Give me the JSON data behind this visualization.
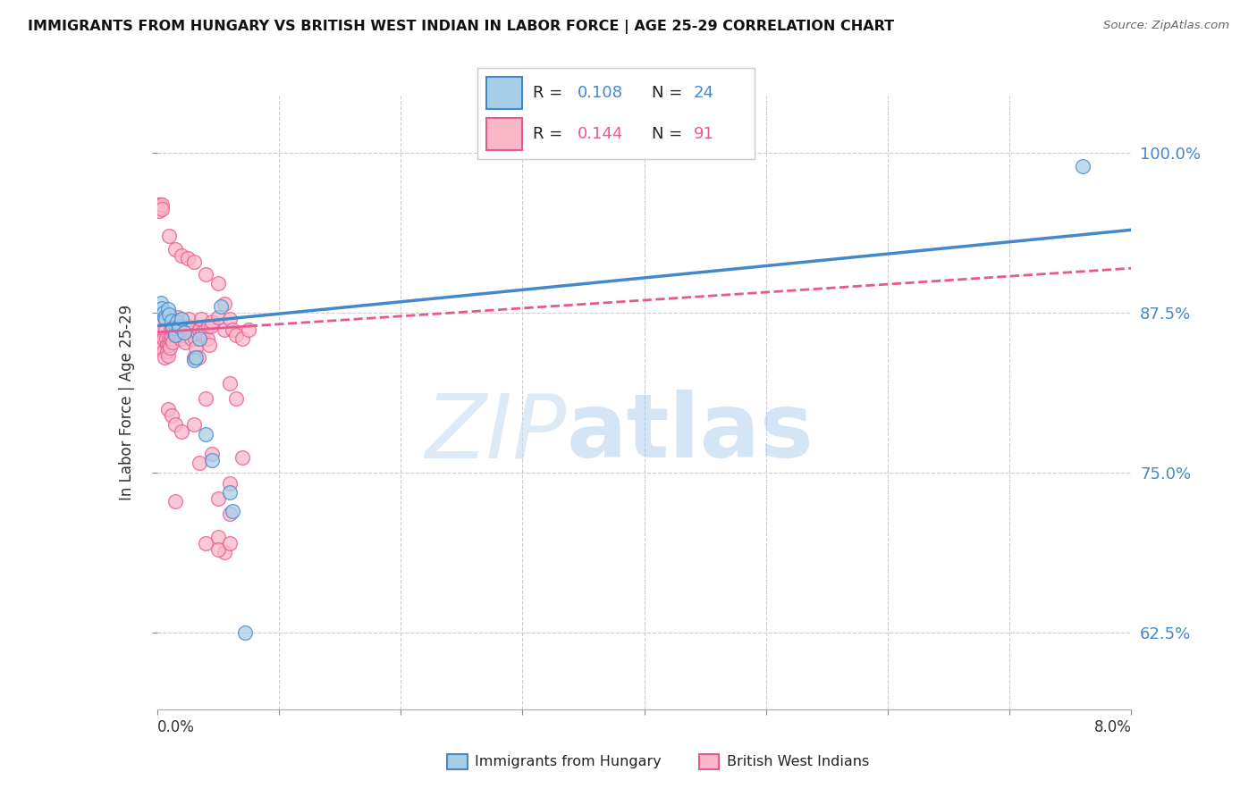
{
  "title": "IMMIGRANTS FROM HUNGARY VS BRITISH WEST INDIAN IN LABOR FORCE | AGE 25-29 CORRELATION CHART",
  "source": "Source: ZipAtlas.com",
  "ylabel": "In Labor Force | Age 25-29",
  "ytick_labels": [
    "62.5%",
    "75.0%",
    "87.5%",
    "100.0%"
  ],
  "ytick_values": [
    0.625,
    0.75,
    0.875,
    1.0
  ],
  "xlim": [
    0.0,
    0.08
  ],
  "ylim": [
    0.565,
    1.045
  ],
  "blue_color": "#a8cfe8",
  "pink_color": "#f9b8c8",
  "line_blue": "#4488cc",
  "line_pink": "#e85890",
  "hungary_points": [
    [
      0.0003,
      0.883
    ],
    [
      0.0004,
      0.879
    ],
    [
      0.0005,
      0.875
    ],
    [
      0.0006,
      0.872
    ],
    [
      0.0007,
      0.87
    ],
    [
      0.0009,
      0.878
    ],
    [
      0.001,
      0.874
    ],
    [
      0.0012,
      0.869
    ],
    [
      0.0013,
      0.863
    ],
    [
      0.0015,
      0.858
    ],
    [
      0.0016,
      0.868
    ],
    [
      0.0018,
      0.865
    ],
    [
      0.002,
      0.87
    ],
    [
      0.0022,
      0.86
    ],
    [
      0.003,
      0.838
    ],
    [
      0.0032,
      0.84
    ],
    [
      0.0035,
      0.855
    ],
    [
      0.004,
      0.78
    ],
    [
      0.0045,
      0.76
    ],
    [
      0.0052,
      0.88
    ],
    [
      0.006,
      0.735
    ],
    [
      0.0062,
      0.72
    ],
    [
      0.0072,
      0.625
    ],
    [
      0.076,
      0.99
    ]
  ],
  "bwi_points": [
    [
      0.0001,
      0.865
    ],
    [
      0.0002,
      0.858
    ],
    [
      0.00025,
      0.855
    ],
    [
      0.0003,
      0.852
    ],
    [
      0.00035,
      0.848
    ],
    [
      0.0004,
      0.86
    ],
    [
      0.00045,
      0.862
    ],
    [
      0.0005,
      0.855
    ],
    [
      0.00055,
      0.845
    ],
    [
      0.0006,
      0.84
    ],
    [
      0.00065,
      0.87
    ],
    [
      0.0007,
      0.862
    ],
    [
      0.00075,
      0.855
    ],
    [
      0.0008,
      0.85
    ],
    [
      0.00085,
      0.845
    ],
    [
      0.0009,
      0.842
    ],
    [
      0.00095,
      0.855
    ],
    [
      0.001,
      0.85
    ],
    [
      0.00105,
      0.848
    ],
    [
      0.0011,
      0.855
    ],
    [
      0.00115,
      0.862
    ],
    [
      0.0012,
      0.858
    ],
    [
      0.00125,
      0.852
    ],
    [
      0.0013,
      0.862
    ],
    [
      0.00135,
      0.86
    ],
    [
      0.0014,
      0.868
    ],
    [
      0.00145,
      0.87
    ],
    [
      0.0015,
      0.86
    ],
    [
      0.00155,
      0.858
    ],
    [
      0.0016,
      0.862
    ],
    [
      0.00165,
      0.868
    ],
    [
      0.0017,
      0.872
    ],
    [
      0.00175,
      0.858
    ],
    [
      0.0018,
      0.862
    ],
    [
      0.00185,
      0.865
    ],
    [
      0.0019,
      0.855
    ],
    [
      0.002,
      0.858
    ],
    [
      0.0021,
      0.862
    ],
    [
      0.0022,
      0.858
    ],
    [
      0.0023,
      0.852
    ],
    [
      0.0024,
      0.862
    ],
    [
      0.0025,
      0.865
    ],
    [
      0.0026,
      0.87
    ],
    [
      0.0027,
      0.862
    ],
    [
      0.0028,
      0.855
    ],
    [
      0.003,
      0.84
    ],
    [
      0.0031,
      0.855
    ],
    [
      0.0032,
      0.848
    ],
    [
      0.0033,
      0.86
    ],
    [
      0.0034,
      0.84
    ],
    [
      0.0035,
      0.862
    ],
    [
      0.0036,
      0.87
    ],
    [
      0.0037,
      0.86
    ],
    [
      0.004,
      0.862
    ],
    [
      0.0041,
      0.855
    ],
    [
      0.0042,
      0.865
    ],
    [
      0.0043,
      0.85
    ],
    [
      0.0044,
      0.865
    ],
    [
      0.0045,
      0.868
    ],
    [
      0.005,
      0.872
    ],
    [
      0.0055,
      0.862
    ],
    [
      0.006,
      0.87
    ],
    [
      0.0062,
      0.862
    ],
    [
      0.0065,
      0.858
    ],
    [
      0.007,
      0.855
    ],
    [
      0.0075,
      0.862
    ],
    [
      0.00015,
      0.955
    ],
    [
      0.0002,
      0.96
    ],
    [
      0.00025,
      0.96
    ],
    [
      0.0003,
      0.958
    ],
    [
      0.00035,
      0.96
    ],
    [
      0.0004,
      0.956
    ],
    [
      0.001,
      0.935
    ],
    [
      0.0015,
      0.925
    ],
    [
      0.002,
      0.92
    ],
    [
      0.0025,
      0.918
    ],
    [
      0.003,
      0.915
    ],
    [
      0.004,
      0.905
    ],
    [
      0.005,
      0.898
    ],
    [
      0.0055,
      0.882
    ],
    [
      0.0009,
      0.8
    ],
    [
      0.0012,
      0.795
    ],
    [
      0.0015,
      0.788
    ],
    [
      0.002,
      0.782
    ],
    [
      0.003,
      0.788
    ],
    [
      0.0035,
      0.758
    ],
    [
      0.004,
      0.808
    ],
    [
      0.005,
      0.73
    ],
    [
      0.006,
      0.82
    ],
    [
      0.0065,
      0.808
    ],
    [
      0.004,
      0.695
    ],
    [
      0.006,
      0.718
    ],
    [
      0.0055,
      0.688
    ],
    [
      0.005,
      0.7
    ],
    [
      0.006,
      0.742
    ],
    [
      0.007,
      0.762
    ],
    [
      0.0045,
      0.765
    ],
    [
      0.005,
      0.69
    ],
    [
      0.006,
      0.695
    ],
    [
      0.0015,
      0.728
    ]
  ]
}
